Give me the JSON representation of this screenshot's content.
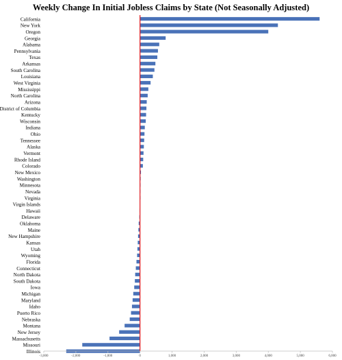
{
  "chart_data": {
    "type": "bar",
    "orientation": "horizontal",
    "title": "Weekly Change In Initial Jobless Claims by State (Not Seasonally Adjusted)",
    "xlabel": "",
    "ylabel": "",
    "xlim": [
      -3000,
      6000
    ],
    "x_ticks": [
      -3000,
      -2000,
      -1000,
      0,
      1000,
      2000,
      3000,
      4000,
      5000,
      6000
    ],
    "x_tick_labels": [
      "-3,000",
      "-2,000",
      "-1,000",
      "0",
      "1,000",
      "2,000",
      "3,000",
      "4,000",
      "5,000",
      "6,000"
    ],
    "grid": false,
    "legend": "none",
    "bar_color": "#4a72b8",
    "zero_line_color": "#e0262b",
    "categories": [
      "California",
      "New York",
      "Oregon",
      "Georgia",
      "Alabama",
      "Pennsylvania",
      "Texas",
      "Arkansas",
      "South Carolina",
      "Louisiana",
      "West Virginia",
      "Mississippi",
      "North Carolina",
      "Arizona",
      "District of Columbia",
      "Kentucky",
      "Wisconsin",
      "Indiana",
      "Ohio",
      "Tennessee",
      "Alaska",
      "Vermont",
      "Rhode Island",
      "Colorado",
      "New Mexico",
      "Washington",
      "Minnesota",
      "Nevada",
      "Virginia",
      "Virgin Islands",
      "Hawaii",
      "Delaware",
      "Oklahoma",
      "Maine",
      "New Hampshire",
      "Kansas",
      "Utah",
      "Wyoming",
      "Florida",
      "Connecticut",
      "North Dakota",
      "South Dakota",
      "Iowa",
      "Michigan",
      "Maryland",
      "Idaho",
      "Puerto Rico",
      "Nebraska",
      "Montana",
      "New Jersey",
      "Massachusetts",
      "Missouri",
      "Illinois"
    ],
    "values": [
      5600,
      4300,
      4000,
      800,
      600,
      560,
      540,
      480,
      450,
      400,
      330,
      260,
      240,
      210,
      200,
      190,
      180,
      150,
      140,
      130,
      120,
      110,
      100,
      90,
      30,
      20,
      15,
      10,
      5,
      0,
      -15,
      -20,
      -40,
      -50,
      -60,
      -70,
      -80,
      -90,
      -110,
      -130,
      -150,
      -160,
      -180,
      -210,
      -230,
      -250,
      -280,
      -320,
      -480,
      -650,
      -950,
      -1800,
      -2300
    ]
  }
}
